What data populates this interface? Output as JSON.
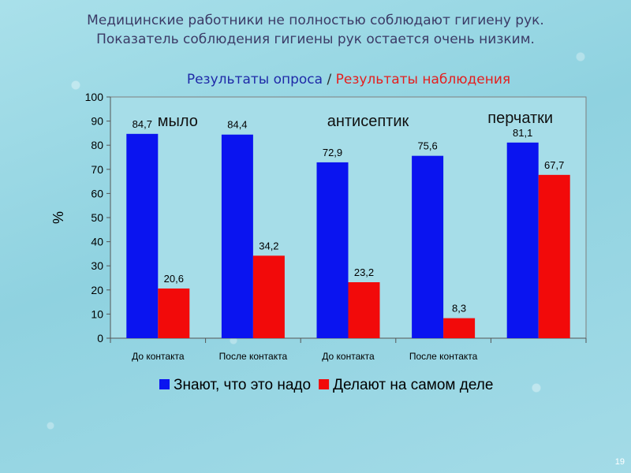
{
  "header": {
    "line1": "Медицинские работники не полностью соблюдают гигиену рук.",
    "line2": "Показатель соблюдения гигиены рук остается очень низким.",
    "subtitle_part1": "Результаты опроса",
    "subtitle_sep": " / ",
    "subtitle_part2": "Результаты наблюдения"
  },
  "page_number": "19",
  "colors": {
    "know": "#0a14f0",
    "do": "#f20a0a"
  },
  "chart_data": {
    "type": "bar",
    "categories": [
      "До контакта",
      "После контакта",
      "До контакта",
      "После контакта",
      ""
    ],
    "series": [
      {
        "name": "Знают, что это надо",
        "values": [
          84.7,
          84.4,
          72.9,
          75.6,
          81.1
        ],
        "labels": [
          "84,7",
          "84,4",
          "72,9",
          "75,6",
          "81,1"
        ]
      },
      {
        "name": "Делают на самом деле",
        "values": [
          20.6,
          34.2,
          23.2,
          8.3,
          67.7
        ],
        "labels": [
          "20,6",
          "34,2",
          "23,2",
          "8,3",
          "67,7"
        ]
      }
    ],
    "ylabel": "%",
    "ylim": [
      0,
      100
    ],
    "yticks": [
      0,
      10,
      20,
      30,
      40,
      50,
      60,
      70,
      80,
      90,
      100
    ],
    "annotations": [
      "мыло",
      "антисептик",
      "перчатки"
    ],
    "legend": "bottom"
  }
}
